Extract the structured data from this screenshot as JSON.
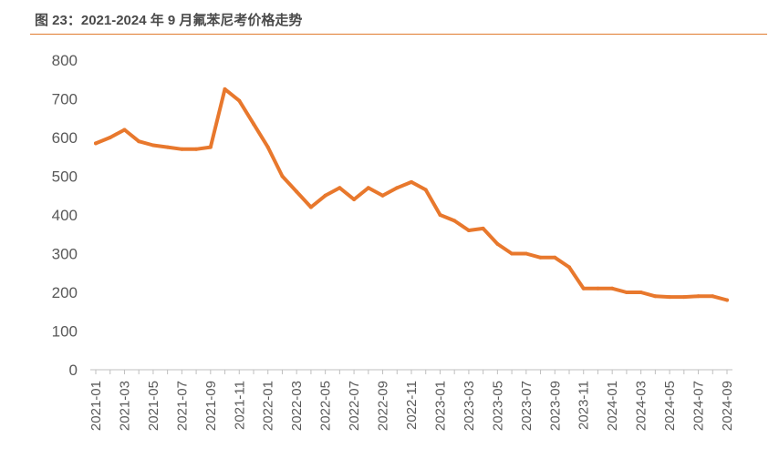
{
  "figure": {
    "title": "图 23：2021-2024 年 9 月氟苯尼考价格走势"
  },
  "chart_data": {
    "type": "line",
    "ylim": [
      0,
      800
    ],
    "y_ticks": [
      0,
      100,
      200,
      300,
      400,
      500,
      600,
      700,
      800
    ],
    "x_tick_labels": [
      "2021-01",
      "2021-03",
      "2021-05",
      "2021-07",
      "2021-09",
      "2021-11",
      "2022-01",
      "2022-03",
      "2022-05",
      "2022-07",
      "2022-09",
      "2022-11",
      "2023-01",
      "2023-03",
      "2023-05",
      "2023-07",
      "2023-09",
      "2023-11",
      "2024-01",
      "2024-03",
      "2024-05",
      "2024-07",
      "2024-09"
    ],
    "grid": false,
    "legend": "none",
    "series": [
      {
        "color": "#e8782d",
        "x": [
          "2021-01",
          "2021-02",
          "2021-03",
          "2021-04",
          "2021-05",
          "2021-06",
          "2021-07",
          "2021-08",
          "2021-09",
          "2021-10",
          "2021-11",
          "2021-12",
          "2022-01",
          "2022-02",
          "2022-03",
          "2022-04",
          "2022-05",
          "2022-06",
          "2022-07",
          "2022-08",
          "2022-09",
          "2022-10",
          "2022-11",
          "2022-12",
          "2023-01",
          "2023-02",
          "2023-03",
          "2023-04",
          "2023-05",
          "2023-06",
          "2023-07",
          "2023-08",
          "2023-09",
          "2023-10",
          "2023-11",
          "2023-12",
          "2024-01",
          "2024-02",
          "2024-03",
          "2024-04",
          "2024-05",
          "2024-06",
          "2024-07",
          "2024-08",
          "2024-09"
        ],
        "values": [
          585,
          600,
          620,
          590,
          580,
          575,
          570,
          570,
          575,
          725,
          695,
          635,
          575,
          500,
          460,
          420,
          450,
          470,
          440,
          470,
          450,
          470,
          485,
          465,
          400,
          385,
          360,
          365,
          325,
          300,
          300,
          290,
          290,
          265,
          210,
          210,
          210,
          200,
          200,
          190,
          188,
          188,
          190,
          190,
          180
        ]
      }
    ]
  }
}
